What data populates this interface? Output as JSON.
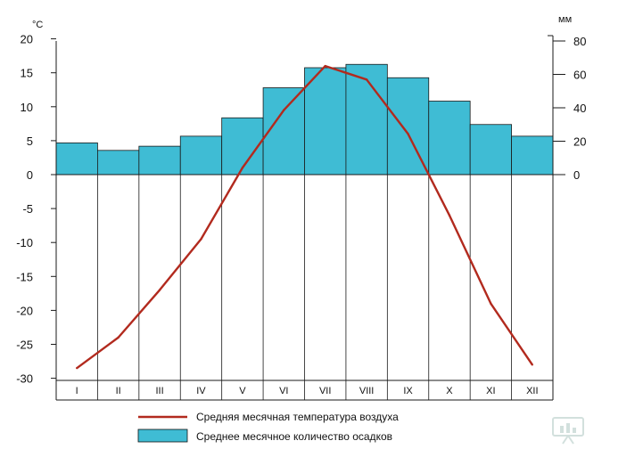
{
  "chart_data": {
    "type": "bar+line",
    "categories": [
      "I",
      "II",
      "III",
      "IV",
      "V",
      "VI",
      "VII",
      "VIII",
      "IX",
      "X",
      "XI",
      "XII"
    ],
    "temperature": {
      "unit": "°C",
      "name": "Средняя месячная температура воздуха",
      "ylim": [
        -30,
        20
      ],
      "ticks": [
        20,
        15,
        10,
        5,
        0,
        -5,
        -10,
        -15,
        -20,
        -25,
        -30
      ],
      "values": [
        -28.5,
        -24,
        -17,
        -9.5,
        1,
        9.5,
        16,
        14,
        6,
        -6,
        -19,
        -28
      ],
      "color": "#b22a1e"
    },
    "precipitation": {
      "unit": "мм",
      "name": "Среднее месячное количество осадков",
      "ylim": [
        0,
        80
      ],
      "ticks": [
        80,
        60,
        40,
        20,
        0
      ],
      "values": [
        19,
        14.5,
        17,
        23,
        34,
        52,
        64,
        66,
        58,
        44,
        30,
        23
      ],
      "color": "#3fbcd4"
    },
    "legend_position": "bottom"
  }
}
